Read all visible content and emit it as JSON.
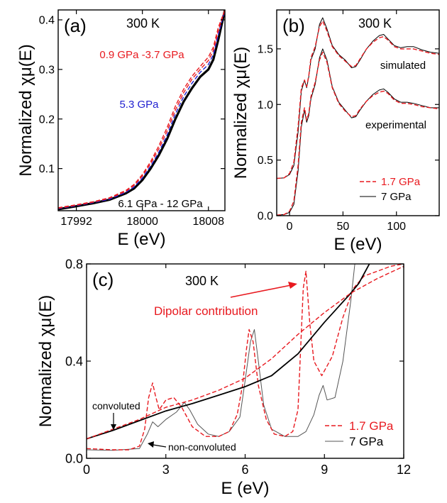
{
  "colors": {
    "red": "#e8191f",
    "blue": "#1f1fd0",
    "black": "#000000",
    "gray": "#555555"
  },
  "chart_data": [
    {
      "panel": "(a)",
      "type": "line",
      "annotation": "300 K",
      "xlabel": "E (eV)",
      "ylabel": "Normalized χμ(E)",
      "xlim": [
        17989.8,
        18010
      ],
      "ylim": [
        0.015,
        0.42
      ],
      "xticks": [
        17992,
        18000,
        18008
      ],
      "yticks": [
        0.1,
        0.2,
        0.3,
        0.4
      ],
      "labels": [
        {
          "text": "0.9 GPa -3.7 GPa",
          "color": "red"
        },
        {
          "text": "5.3 GPa",
          "color": "blue"
        },
        {
          "text": "6.1 GPa - 12 GPa",
          "color": "black"
        }
      ],
      "series": [
        {
          "color": "black",
          "style": "solid",
          "width": 3.2,
          "x": [
            17989.8,
            17992,
            17994,
            17996,
            17998,
            17999,
            18000,
            18001,
            18002,
            18003,
            18004,
            18005,
            18006,
            18007,
            18008,
            18008.6,
            18009.2,
            18010
          ],
          "y": [
            0.018,
            0.024,
            0.03,
            0.037,
            0.05,
            0.06,
            0.077,
            0.1,
            0.127,
            0.16,
            0.2,
            0.235,
            0.262,
            0.285,
            0.3,
            0.32,
            0.36,
            0.42
          ]
        },
        {
          "color": "blue",
          "style": "dash",
          "width": 1.4,
          "x": [
            17989.8,
            17992,
            17994,
            17996,
            17998,
            17999,
            18000,
            18001,
            18002,
            18003,
            18004,
            18005,
            18006,
            18007,
            18008,
            18008.6,
            18009.2,
            18010
          ],
          "y": [
            0.019,
            0.025,
            0.031,
            0.038,
            0.052,
            0.063,
            0.081,
            0.105,
            0.133,
            0.168,
            0.21,
            0.245,
            0.272,
            0.294,
            0.31,
            0.33,
            0.37,
            0.42
          ]
        },
        {
          "color": "red",
          "style": "dash",
          "width": 1.4,
          "x": [
            17989.8,
            17992,
            17994,
            17996,
            17998,
            17999,
            18000,
            18001,
            18002,
            18003,
            18004,
            18005,
            18006,
            18007,
            18008,
            18008.6,
            18009.2,
            18010
          ],
          "y": [
            0.02,
            0.026,
            0.032,
            0.04,
            0.054,
            0.066,
            0.085,
            0.11,
            0.14,
            0.176,
            0.218,
            0.253,
            0.28,
            0.3,
            0.318,
            0.338,
            0.378,
            0.42
          ]
        },
        {
          "color": "red",
          "style": "dash",
          "width": 1.4,
          "x": [
            17989.8,
            17992,
            17994,
            17996,
            17998,
            17999,
            18000,
            18001,
            18002,
            18003,
            18004,
            18005,
            18006,
            18007,
            18008,
            18008.6,
            18009.2,
            18010
          ],
          "y": [
            0.021,
            0.027,
            0.033,
            0.041,
            0.056,
            0.068,
            0.088,
            0.114,
            0.146,
            0.183,
            0.226,
            0.26,
            0.286,
            0.306,
            0.325,
            0.345,
            0.385,
            0.42
          ]
        }
      ]
    },
    {
      "panel": "(b)",
      "type": "line",
      "annotation": "300 K",
      "xlabel": "E (eV)",
      "ylabel": "Normalized χμ(E)",
      "xlim": [
        -12,
        140
      ],
      "ylim": [
        0,
        1.85
      ],
      "xticks": [
        0,
        50,
        100
      ],
      "yticks": [
        0.0,
        0.5,
        1.0,
        1.5
      ],
      "labels": [
        {
          "text": "simulated",
          "color": "black"
        },
        {
          "text": "experimental",
          "color": "black"
        }
      ],
      "legend": [
        {
          "name": "1.7 GPa",
          "color": "red",
          "style": "dash"
        },
        {
          "name": "7 GPa",
          "color": "black",
          "style": "solid"
        }
      ],
      "series": [
        {
          "name": "7 GPa",
          "color": "black",
          "style": "solid",
          "width": 1,
          "x": [
            -12,
            -5,
            0,
            4,
            8,
            11,
            14,
            16,
            18,
            20,
            24,
            28,
            31,
            35,
            40,
            46,
            52,
            58,
            62,
            66,
            72,
            78,
            84,
            88,
            92,
            98,
            104,
            110,
            116,
            124,
            132,
            140
          ],
          "y": [
            0.005,
            0.01,
            0.03,
            0.1,
            0.4,
            0.8,
            0.95,
            0.84,
            0.9,
            1.05,
            1.18,
            1.42,
            1.5,
            1.4,
            1.16,
            1.02,
            0.95,
            0.88,
            0.89,
            0.95,
            1.03,
            1.09,
            1.13,
            1.14,
            1.11,
            1.05,
            1.02,
            1.02,
            1.01,
            0.99,
            0.97,
            0.97
          ]
        },
        {
          "name": "1.7 GPa",
          "color": "red",
          "style": "dash",
          "width": 1.4,
          "x": [
            -12,
            -5,
            0,
            4,
            8,
            11,
            14,
            16,
            18,
            20,
            24,
            28,
            31,
            35,
            40,
            46,
            52,
            58,
            62,
            66,
            72,
            78,
            84,
            88,
            92,
            98,
            104,
            110,
            116,
            124,
            132,
            140
          ],
          "y": [
            0.005,
            0.01,
            0.04,
            0.13,
            0.45,
            0.84,
            0.97,
            0.86,
            0.92,
            1.07,
            1.2,
            1.4,
            1.47,
            1.38,
            1.15,
            1.01,
            0.94,
            0.89,
            0.9,
            0.96,
            1.03,
            1.08,
            1.11,
            1.12,
            1.1,
            1.04,
            1.01,
            1.01,
            1.0,
            0.98,
            0.97,
            0.96
          ]
        },
        {
          "name": "7 GPa",
          "color": "black",
          "style": "solid",
          "width": 1,
          "x": [
            -12,
            -5,
            0,
            4,
            8,
            11,
            14,
            16,
            18,
            20,
            24,
            28,
            31,
            35,
            40,
            46,
            52,
            58,
            62,
            66,
            72,
            78,
            84,
            88,
            92,
            98,
            104,
            110,
            116,
            124,
            132,
            140
          ],
          "y": [
            0.335,
            0.34,
            0.37,
            0.45,
            0.75,
            1.12,
            1.22,
            1.15,
            1.25,
            1.4,
            1.5,
            1.72,
            1.78,
            1.68,
            1.53,
            1.45,
            1.4,
            1.33,
            1.34,
            1.4,
            1.5,
            1.57,
            1.62,
            1.63,
            1.59,
            1.53,
            1.51,
            1.52,
            1.52,
            1.49,
            1.47,
            1.46
          ]
        },
        {
          "name": "1.7 GPa",
          "color": "red",
          "style": "dash",
          "width": 1.4,
          "x": [
            -12,
            -5,
            0,
            4,
            8,
            11,
            14,
            16,
            18,
            20,
            24,
            28,
            31,
            35,
            40,
            46,
            52,
            58,
            62,
            66,
            72,
            78,
            84,
            88,
            92,
            98,
            104,
            110,
            116,
            124,
            132,
            140
          ],
          "y": [
            0.335,
            0.34,
            0.38,
            0.48,
            0.8,
            1.15,
            1.22,
            1.16,
            1.26,
            1.42,
            1.52,
            1.7,
            1.75,
            1.66,
            1.52,
            1.44,
            1.39,
            1.34,
            1.35,
            1.41,
            1.5,
            1.56,
            1.6,
            1.61,
            1.58,
            1.52,
            1.5,
            1.5,
            1.5,
            1.48,
            1.46,
            1.45
          ]
        }
      ]
    },
    {
      "panel": "(c)",
      "type": "line",
      "annotation": "300 K",
      "xlabel": "E (eV)",
      "ylabel": "Normalized χμ(E)",
      "xlim": [
        0,
        12
      ],
      "ylim": [
        0,
        0.8
      ],
      "xticks": [
        0,
        3,
        6,
        9,
        12
      ],
      "yticks": [
        0.0,
        0.4,
        0.8
      ],
      "labels": [
        {
          "text": "Dipolar contribution",
          "color": "red"
        },
        {
          "text": "convoluted",
          "color": "black"
        },
        {
          "text": "non-convoluted",
          "color": "black"
        }
      ],
      "legend": [
        {
          "name": "1.7 GPa",
          "color": "red",
          "style": "dash"
        },
        {
          "name": "7 GPa",
          "color": "gray",
          "style": "solid"
        }
      ],
      "series": [
        {
          "name": "7 GPa",
          "color": "gray",
          "style": "solid",
          "width": 1,
          "x": [
            0,
            1,
            2,
            2.3,
            2.5,
            2.7,
            3.0,
            3.4,
            3.7,
            3.9,
            4.2,
            4.6,
            5.0,
            5.4,
            5.8,
            6.0,
            6.2,
            6.35,
            6.5,
            6.7,
            7.0,
            7.5,
            8.0,
            8.3,
            8.6,
            8.8,
            8.95,
            9.1,
            9.4,
            9.7,
            10.0,
            10.15
          ],
          "y": [
            0.035,
            0.033,
            0.04,
            0.1,
            0.15,
            0.13,
            0.16,
            0.19,
            0.23,
            0.2,
            0.14,
            0.1,
            0.09,
            0.11,
            0.17,
            0.32,
            0.48,
            0.53,
            0.4,
            0.22,
            0.12,
            0.09,
            0.09,
            0.11,
            0.18,
            0.26,
            0.3,
            0.24,
            0.25,
            0.4,
            0.65,
            0.8
          ]
        },
        {
          "name": "1.7 GPa",
          "color": "red",
          "style": "dash",
          "width": 1.4,
          "x": [
            0,
            1,
            1.6,
            2.0,
            2.2,
            2.35,
            2.5,
            2.6,
            2.75,
            3.0,
            3.3,
            3.6,
            4.0,
            4.5,
            5.0,
            5.4,
            5.7,
            5.9,
            6.05,
            6.15,
            6.3,
            6.5,
            6.8,
            7.1,
            7.5,
            7.8,
            8.0,
            8.1,
            8.2,
            8.3,
            8.45,
            8.6,
            8.9,
            9.3,
            9.7,
            10.1,
            10.5,
            11.0,
            11.5,
            12
          ],
          "y": [
            0.04,
            0.035,
            0.035,
            0.05,
            0.12,
            0.25,
            0.31,
            0.26,
            0.2,
            0.24,
            0.25,
            0.21,
            0.13,
            0.09,
            0.09,
            0.11,
            0.18,
            0.3,
            0.45,
            0.53,
            0.48,
            0.3,
            0.16,
            0.1,
            0.09,
            0.11,
            0.2,
            0.45,
            0.7,
            0.77,
            0.55,
            0.4,
            0.34,
            0.42,
            0.58,
            0.7,
            0.75,
            0.77,
            0.79,
            0.8
          ]
        },
        {
          "color": "black",
          "style": "solid",
          "width": 1.8,
          "x": [
            0,
            1,
            2,
            3,
            4,
            5,
            6,
            7,
            8,
            9,
            9.5,
            10.0,
            10.3,
            10.55,
            10.7
          ],
          "y": [
            0.08,
            0.115,
            0.155,
            0.195,
            0.225,
            0.26,
            0.295,
            0.34,
            0.43,
            0.56,
            0.62,
            0.68,
            0.72,
            0.77,
            0.8
          ]
        },
        {
          "color": "red",
          "style": "dash",
          "width": 1.4,
          "x": [
            0,
            1,
            2,
            3,
            4,
            5,
            6,
            7,
            8,
            9,
            10,
            11,
            12
          ],
          "y": [
            0.08,
            0.12,
            0.16,
            0.21,
            0.24,
            0.28,
            0.33,
            0.41,
            0.51,
            0.6,
            0.68,
            0.74,
            0.79
          ]
        }
      ]
    }
  ]
}
